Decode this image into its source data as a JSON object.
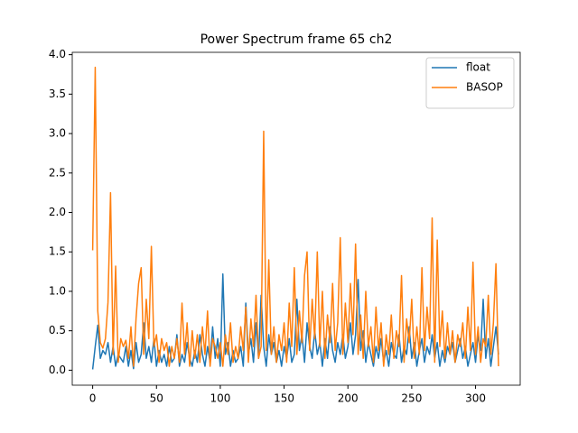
{
  "chart_data": {
    "type": "line",
    "title": "Power Spectrum frame 65 ch2",
    "x": [
      0,
      2,
      4,
      6,
      8,
      10,
      12,
      14,
      16,
      18,
      20,
      22,
      24,
      26,
      28,
      30,
      32,
      34,
      36,
      38,
      40,
      42,
      44,
      46,
      48,
      50,
      52,
      54,
      56,
      58,
      60,
      62,
      64,
      66,
      68,
      70,
      72,
      74,
      76,
      78,
      80,
      82,
      84,
      86,
      88,
      90,
      92,
      94,
      96,
      98,
      100,
      102,
      104,
      106,
      108,
      110,
      112,
      114,
      116,
      118,
      120,
      122,
      124,
      126,
      128,
      130,
      132,
      134,
      136,
      138,
      140,
      142,
      144,
      146,
      148,
      150,
      152,
      154,
      156,
      158,
      160,
      162,
      164,
      166,
      168,
      170,
      172,
      174,
      176,
      178,
      180,
      182,
      184,
      186,
      188,
      190,
      192,
      194,
      196,
      198,
      200,
      202,
      204,
      206,
      208,
      210,
      212,
      214,
      216,
      218,
      220,
      222,
      224,
      226,
      228,
      230,
      232,
      234,
      236,
      238,
      240,
      242,
      244,
      246,
      248,
      250,
      252,
      254,
      256,
      258,
      260,
      262,
      264,
      266,
      268,
      270,
      272,
      274,
      276,
      278,
      280,
      282,
      284,
      286,
      288,
      290,
      292,
      294,
      296,
      298,
      300,
      302,
      304,
      306,
      308,
      310,
      312,
      314,
      316,
      318
    ],
    "series": [
      {
        "name": "float",
        "color": "#1f77b4",
        "values": [
          0.01,
          0.3,
          0.57,
          0.15,
          0.25,
          0.2,
          0.35,
          0.1,
          0.3,
          0.05,
          0.2,
          0.15,
          0.1,
          0.3,
          0.05,
          0.25,
          0.02,
          0.35,
          0.1,
          0.2,
          0.6,
          0.15,
          0.3,
          0.1,
          0.4,
          0.05,
          0.25,
          0.1,
          0.2,
          0.05,
          0.3,
          0.1,
          0.15,
          0.45,
          0.05,
          0.2,
          0.1,
          0.35,
          0.15,
          0.05,
          0.25,
          0.1,
          0.45,
          0.2,
          0.05,
          0.3,
          0.1,
          0.55,
          0.15,
          0.4,
          0.05,
          1.22,
          0.2,
          0.35,
          0.05,
          0.25,
          0.1,
          0.15,
          0.3,
          0.05,
          0.85,
          0.2,
          0.4,
          0.1,
          0.6,
          0.15,
          0.95,
          0.3,
          0.05,
          0.45,
          0.2,
          0.35,
          0.1,
          0.25,
          0.05,
          0.3,
          0.15,
          0.4,
          0.1,
          0.2,
          0.9,
          0.25,
          0.45,
          0.1,
          0.6,
          0.3,
          0.15,
          0.5,
          0.2,
          0.35,
          0.05,
          0.4,
          0.15,
          0.55,
          0.25,
          0.1,
          0.35,
          0.2,
          0.45,
          0.15,
          0.3,
          0.6,
          0.2,
          0.45,
          1.15,
          0.25,
          0.5,
          0.1,
          0.35,
          0.2,
          0.05,
          0.3,
          0.15,
          0.4,
          0.1,
          0.25,
          0.05,
          0.35,
          0.2,
          0.15,
          0.45,
          0.1,
          0.3,
          0.2,
          0.55,
          0.15,
          0.35,
          0.05,
          0.25,
          0.4,
          0.1,
          0.3,
          0.2,
          0.45,
          0.15,
          0.35,
          0.05,
          0.25,
          0.1,
          0.3,
          0.2,
          0.35,
          0.1,
          0.25,
          0.4,
          0.15,
          0.3,
          0.05,
          0.2,
          0.35,
          0.1,
          0.45,
          0.25,
          0.9,
          0.15,
          0.4,
          0.05,
          0.3,
          0.55,
          0.2
        ]
      },
      {
        "name": "BASOP",
        "color": "#ff7f0e",
        "values": [
          1.52,
          3.84,
          0.75,
          0.35,
          0.28,
          0.4,
          0.86,
          2.25,
          0.2,
          1.32,
          0.1,
          0.4,
          0.3,
          0.38,
          0.15,
          0.55,
          0.05,
          0.66,
          1.1,
          1.3,
          0.2,
          0.9,
          0.4,
          1.57,
          0.3,
          0.45,
          0.1,
          0.4,
          0.25,
          0.35,
          0.05,
          0.3,
          0.15,
          0.4,
          0.1,
          0.85,
          0.2,
          0.6,
          0.05,
          0.5,
          0.15,
          0.45,
          0.1,
          0.55,
          0.2,
          0.75,
          0.05,
          0.4,
          0.3,
          0.15,
          0.35,
          0.05,
          0.45,
          0.2,
          0.6,
          0.1,
          0.3,
          0.15,
          0.55,
          0.25,
          0.8,
          0.1,
          0.65,
          0.3,
          0.95,
          0.15,
          0.3,
          3.03,
          0.25,
          1.4,
          0.2,
          0.55,
          0.1,
          0.45,
          0.25,
          0.6,
          0.1,
          0.85,
          0.3,
          1.3,
          0.2,
          0.75,
          0.35,
          1.2,
          1.5,
          0.25,
          0.9,
          0.4,
          1.5,
          0.3,
          1.0,
          0.15,
          0.7,
          0.35,
          1.1,
          0.25,
          0.6,
          1.68,
          0.2,
          0.85,
          0.35,
          1.1,
          0.45,
          1.6,
          0.2,
          0.7,
          0.15,
          1.0,
          0.3,
          0.55,
          0.1,
          0.8,
          0.25,
          0.6,
          0.05,
          0.45,
          0.2,
          0.7,
          0.15,
          0.5,
          0.3,
          1.2,
          0.1,
          0.65,
          0.35,
          0.9,
          0.15,
          0.55,
          0.2,
          1.3,
          0.25,
          0.8,
          0.4,
          1.93,
          0.1,
          1.65,
          0.3,
          0.75,
          0.15,
          0.6,
          0.2,
          0.5,
          0.1,
          0.45,
          0.3,
          0.6,
          0.15,
          0.8,
          0.25,
          1.37,
          0.2,
          0.55,
          0.1,
          0.4,
          0.3,
          0.95,
          0.2,
          0.6,
          1.35,
          0.05
        ]
      }
    ],
    "xlim": [
      -16,
      335
    ],
    "ylim": [
      -0.19,
      4.03
    ],
    "xticks": [
      0,
      50,
      100,
      150,
      200,
      250,
      300
    ],
    "yticks": [
      {
        "value": 0,
        "label": "0.0"
      },
      {
        "value": 0.5,
        "label": "0.5"
      },
      {
        "value": 1,
        "label": "1.0"
      },
      {
        "value": 1.5,
        "label": "1.5"
      },
      {
        "value": 2,
        "label": "2.0"
      },
      {
        "value": 2.5,
        "label": "2.5"
      },
      {
        "value": 3,
        "label": "3.0"
      },
      {
        "value": 3.5,
        "label": "3.5"
      },
      {
        "value": 4,
        "label": "4.0"
      }
    ],
    "legend": "upper right"
  }
}
